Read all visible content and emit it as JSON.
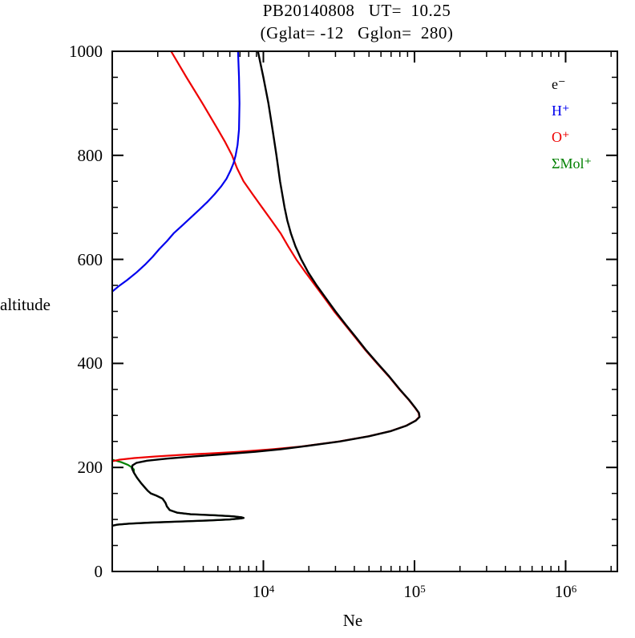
{
  "chart_data": {
    "type": "line",
    "title_line1": "PB20140808   UT=  10.25",
    "title_line2": "(Gglat= -12   Gglon=  280)",
    "xlabel": "Ne",
    "ylabel": "altitude",
    "x_scale": "log",
    "y_scale": "linear",
    "xlim": [
      1000,
      2200000
    ],
    "ylim": [
      0,
      1000
    ],
    "grid": false,
    "x_major_ticks": [
      {
        "value": 10000,
        "base": "10",
        "exp": "4"
      },
      {
        "value": 100000,
        "base": "10",
        "exp": "5"
      },
      {
        "value": 1000000,
        "base": "10",
        "exp": "6"
      }
    ],
    "y_major_ticks": [
      0,
      200,
      400,
      600,
      800,
      1000
    ],
    "y_minor_step": 50,
    "legend_position": "upper-right-inside",
    "legend": [
      {
        "name": "electrons",
        "label": "e⁻",
        "color": "#000000"
      },
      {
        "name": "h-plus",
        "label": "H⁺",
        "color": "#0000ee"
      },
      {
        "name": "o-plus",
        "label": "O⁺",
        "color": "#ee0000"
      },
      {
        "name": "mol-plus",
        "label": "ΣMol⁺",
        "color": "#008000"
      }
    ],
    "series": [
      {
        "name": "mol-plus",
        "label": "ΣMol⁺",
        "color": "#008000",
        "points": [
          [
            215,
            1000
          ],
          [
            210,
            1150
          ],
          [
            205,
            1270
          ],
          [
            200,
            1350
          ],
          [
            196,
            1390
          ],
          [
            190,
            1390
          ],
          [
            180,
            1460
          ],
          [
            170,
            1550
          ],
          [
            160,
            1660
          ],
          [
            155,
            1720
          ],
          [
            150,
            1800
          ],
          [
            146,
            1950
          ],
          [
            140,
            2150
          ],
          [
            132,
            2250
          ],
          [
            125,
            2300
          ],
          [
            118,
            2400
          ],
          [
            113,
            2700
          ],
          [
            110,
            3300
          ],
          [
            108,
            4800
          ],
          [
            106,
            6300
          ],
          [
            104,
            7200
          ],
          [
            103,
            7400
          ],
          [
            102,
            7100
          ],
          [
            100,
            6000
          ],
          [
            98,
            4300
          ],
          [
            96,
            2800
          ],
          [
            94,
            1800
          ],
          [
            92,
            1300
          ],
          [
            90,
            1080
          ],
          [
            88,
            1000
          ]
        ]
      },
      {
        "name": "o-plus",
        "label": "O⁺",
        "color": "#ee0000",
        "points": [
          [
            212,
            1000
          ],
          [
            215,
            1120
          ],
          [
            218,
            1400
          ],
          [
            221,
            1900
          ],
          [
            224,
            2800
          ],
          [
            227,
            4400
          ],
          [
            230,
            6800
          ],
          [
            235,
            11500
          ],
          [
            240,
            17500
          ],
          [
            250,
            31500
          ],
          [
            260,
            49500
          ],
          [
            270,
            69500
          ],
          [
            280,
            87500
          ],
          [
            290,
            101500
          ],
          [
            297,
            107500
          ],
          [
            305,
            106500
          ],
          [
            315,
            100500
          ],
          [
            330,
            91500
          ],
          [
            350,
            79500
          ],
          [
            375,
            67500
          ],
          [
            400,
            56500
          ],
          [
            425,
            47500
          ],
          [
            450,
            40500
          ],
          [
            475,
            34500
          ],
          [
            500,
            29400
          ],
          [
            525,
            25500
          ],
          [
            550,
            22000
          ],
          [
            575,
            19000
          ],
          [
            600,
            16500
          ],
          [
            625,
            14600
          ],
          [
            650,
            13000
          ],
          [
            675,
            11300
          ],
          [
            700,
            9800
          ],
          [
            725,
            8500
          ],
          [
            750,
            7400
          ],
          [
            775,
            6700
          ],
          [
            800,
            6200
          ],
          [
            825,
            5600
          ],
          [
            850,
            5000
          ],
          [
            900,
            3950
          ],
          [
            950,
            3100
          ],
          [
            1000,
            2450
          ]
        ]
      },
      {
        "name": "h-plus",
        "label": "H⁺",
        "color": "#0000ee",
        "points": [
          [
            538,
            1000
          ],
          [
            548,
            1100
          ],
          [
            560,
            1250
          ],
          [
            575,
            1450
          ],
          [
            590,
            1650
          ],
          [
            605,
            1850
          ],
          [
            620,
            2050
          ],
          [
            635,
            2300
          ],
          [
            650,
            2550
          ],
          [
            665,
            2900
          ],
          [
            680,
            3300
          ],
          [
            695,
            3750
          ],
          [
            710,
            4250
          ],
          [
            725,
            4750
          ],
          [
            740,
            5250
          ],
          [
            755,
            5700
          ],
          [
            770,
            6050
          ],
          [
            785,
            6350
          ],
          [
            800,
            6550
          ],
          [
            820,
            6750
          ],
          [
            850,
            6900
          ],
          [
            900,
            6950
          ],
          [
            950,
            6900
          ],
          [
            1000,
            6800
          ]
        ]
      },
      {
        "name": "electrons",
        "label": "e⁻",
        "color": "#000000",
        "points": [
          [
            88,
            1000
          ],
          [
            90,
            1080
          ],
          [
            92,
            1300
          ],
          [
            94,
            1800
          ],
          [
            96,
            2800
          ],
          [
            98,
            4300
          ],
          [
            100,
            6000
          ],
          [
            102,
            7100
          ],
          [
            103,
            7400
          ],
          [
            104,
            7200
          ],
          [
            106,
            6300
          ],
          [
            108,
            4800
          ],
          [
            110,
            3300
          ],
          [
            113,
            2700
          ],
          [
            118,
            2400
          ],
          [
            125,
            2300
          ],
          [
            132,
            2250
          ],
          [
            140,
            2150
          ],
          [
            146,
            1950
          ],
          [
            150,
            1800
          ],
          [
            155,
            1720
          ],
          [
            160,
            1660
          ],
          [
            170,
            1550
          ],
          [
            180,
            1460
          ],
          [
            190,
            1390
          ],
          [
            198,
            1350
          ],
          [
            204,
            1360
          ],
          [
            209,
            1450
          ],
          [
            213,
            1700
          ],
          [
            217,
            2300
          ],
          [
            221,
            3400
          ],
          [
            225,
            5200
          ],
          [
            230,
            8800
          ],
          [
            235,
            13000
          ],
          [
            240,
            18000
          ],
          [
            250,
            32000
          ],
          [
            260,
            50000
          ],
          [
            270,
            70000
          ],
          [
            280,
            88000
          ],
          [
            290,
            102000
          ],
          [
            297,
            108000
          ],
          [
            305,
            107000
          ],
          [
            315,
            101000
          ],
          [
            330,
            92000
          ],
          [
            350,
            80000
          ],
          [
            375,
            68000
          ],
          [
            400,
            57000
          ],
          [
            425,
            48000
          ],
          [
            450,
            41000
          ],
          [
            475,
            35000
          ],
          [
            500,
            30000
          ],
          [
            525,
            26000
          ],
          [
            550,
            22500
          ],
          [
            575,
            19800
          ],
          [
            600,
            17800
          ],
          [
            625,
            16300
          ],
          [
            650,
            15200
          ],
          [
            675,
            14400
          ],
          [
            700,
            13800
          ],
          [
            750,
            12900
          ],
          [
            800,
            12200
          ],
          [
            850,
            11500
          ],
          [
            900,
            10800
          ],
          [
            950,
            10000
          ],
          [
            1000,
            9200
          ]
        ]
      }
    ]
  }
}
